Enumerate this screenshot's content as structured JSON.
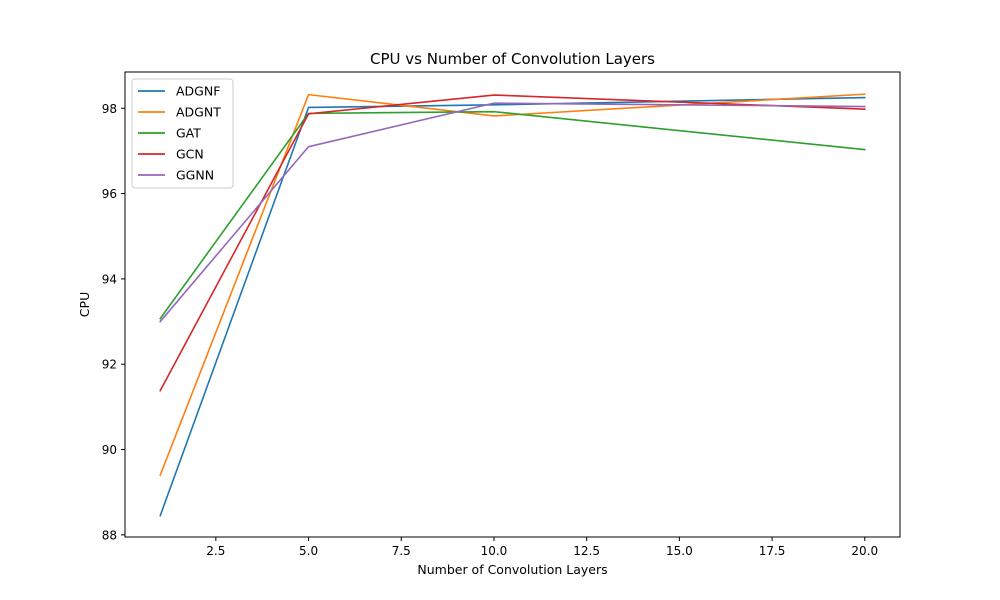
{
  "chart_data": {
    "type": "line",
    "title": "CPU vs Number of Convolution Layers",
    "xlabel": "Number of Convolution Layers",
    "ylabel": "CPU",
    "x": [
      1,
      5,
      10,
      20
    ],
    "xlim": [
      0.05,
      20.95
    ],
    "ylim": [
      87.95,
      98.85
    ],
    "xticks": [
      2.5,
      5.0,
      7.5,
      10.0,
      12.5,
      15.0,
      17.5,
      20.0
    ],
    "xtick_labels": [
      "2.5",
      "5.0",
      "7.5",
      "10.0",
      "12.5",
      "15.0",
      "17.5",
      "20.0"
    ],
    "yticks": [
      88,
      90,
      92,
      94,
      96,
      98
    ],
    "ytick_labels": [
      "88",
      "90",
      "92",
      "94",
      "96",
      "98"
    ],
    "grid": false,
    "legend_position": "upper-left",
    "series": [
      {
        "name": "ADGNF",
        "color": "#1f77b4",
        "values": [
          88.45,
          98.02,
          98.08,
          98.25
        ]
      },
      {
        "name": "ADGNT",
        "color": "#ff7f0e",
        "values": [
          89.4,
          98.32,
          97.82,
          98.33
        ]
      },
      {
        "name": "GAT",
        "color": "#2ca02c",
        "values": [
          93.07,
          97.88,
          97.92,
          97.03
        ]
      },
      {
        "name": "GCN",
        "color": "#d62728",
        "values": [
          91.38,
          97.87,
          98.31,
          97.98
        ]
      },
      {
        "name": "GGNN",
        "color": "#9467bd",
        "values": [
          93.0,
          97.1,
          98.12,
          98.04
        ]
      }
    ]
  }
}
